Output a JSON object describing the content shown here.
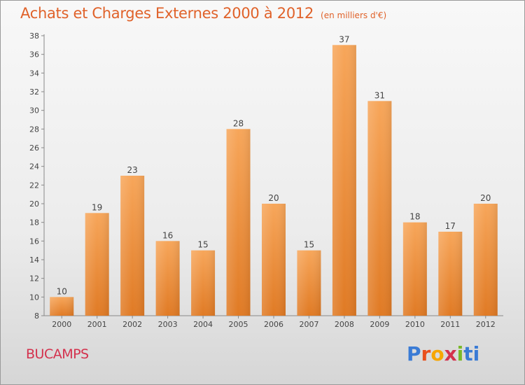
{
  "header": {
    "title": "Achats et Charges Externes 2000 à 2012",
    "subtitle": "(en milliers d'€)"
  },
  "footer": {
    "location": "BUCAMPS",
    "logo_text": "Proxiti"
  },
  "colors": {
    "bar_top": "#f7a65a",
    "bar_bottom": "#e07a24",
    "title": "#e0622a",
    "location": "#d4314d"
  },
  "chart_data": {
    "type": "bar",
    "categories": [
      "2000",
      "2001",
      "2002",
      "2003",
      "2004",
      "2005",
      "2006",
      "2007",
      "2008",
      "2009",
      "2010",
      "2011",
      "2012"
    ],
    "values": [
      10,
      19,
      23,
      16,
      15,
      28,
      20,
      15,
      37,
      31,
      18,
      17,
      20
    ],
    "ylim": [
      8,
      38
    ],
    "yticks": [
      8,
      10,
      12,
      14,
      16,
      18,
      20,
      22,
      24,
      26,
      28,
      30,
      32,
      34,
      36,
      38
    ],
    "grid": false,
    "data_labels": true,
    "legend": "none"
  }
}
